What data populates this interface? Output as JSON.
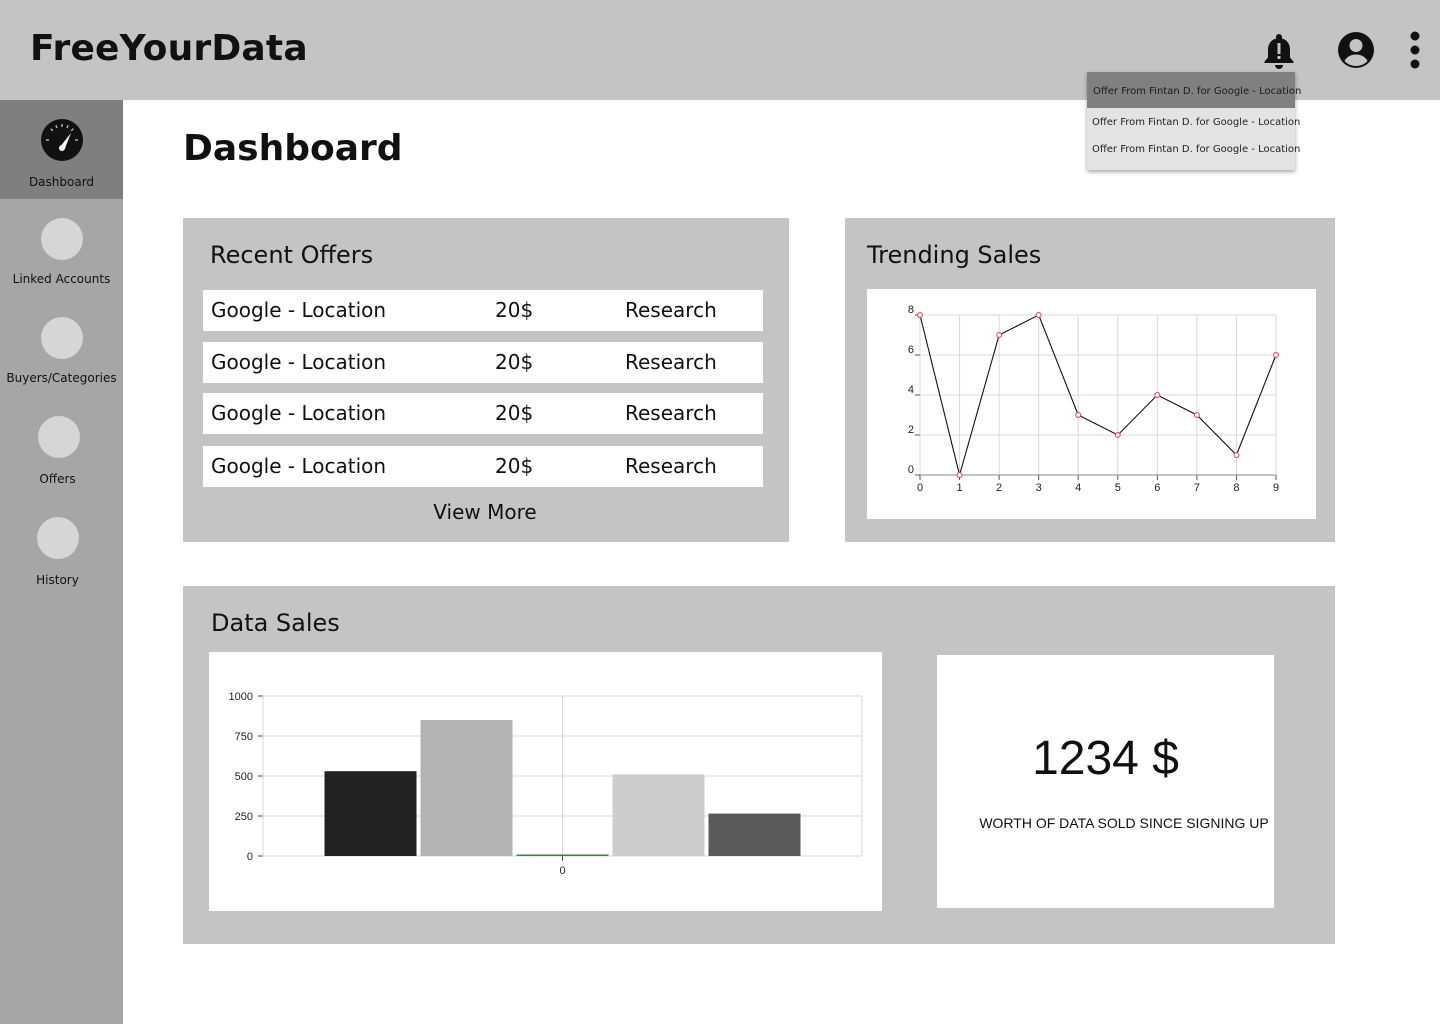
{
  "app": {
    "title": "FreeYourData"
  },
  "header": {
    "icons": [
      "bell-alert-icon",
      "account-circle-icon",
      "more-vertical-icon"
    ]
  },
  "notifications": [
    "Offer From Fintan D. for Google - Location",
    "Offer From Fintan D. for Google - Location",
    "Offer From Fintan D. for Google - Location"
  ],
  "sidebar": {
    "items": [
      {
        "label": "Dashboard",
        "icon": "speedometer-icon",
        "active": true
      },
      {
        "label": "Linked Accounts",
        "icon": "placeholder-circle-icon"
      },
      {
        "label": "Buyers/Categories",
        "icon": "placeholder-circle-icon"
      },
      {
        "label": "Offers",
        "icon": "placeholder-circle-icon"
      },
      {
        "label": "History",
        "icon": "placeholder-circle-icon"
      }
    ]
  },
  "page": {
    "title": "Dashboard"
  },
  "recent_offers": {
    "title": "Recent Offers",
    "rows": [
      {
        "source": "Google - Location",
        "price": "20$",
        "buyer": "Research"
      },
      {
        "source": "Google - Location",
        "price": "20$",
        "buyer": "Research"
      },
      {
        "source": "Google - Location",
        "price": "20$",
        "buyer": "Research"
      },
      {
        "source": "Google - Location",
        "price": "20$",
        "buyer": "Research"
      }
    ],
    "view_more": "View More"
  },
  "trending_sales": {
    "title": "Trending Sales"
  },
  "data_sales": {
    "title": "Data Sales",
    "total_amount": "1234 $",
    "total_caption": "WORTH OF DATA SOLD SINCE SIGNING UP"
  },
  "colors": {
    "header_bg": "#c4c4c4",
    "sidebar_bg": "#a6a6a6",
    "sidebar_active_bg": "#7f7f7f",
    "card_bg": "#c4c4c4",
    "line_marker": "#e8485a"
  },
  "chart_data": [
    {
      "type": "line",
      "title": "",
      "x": [
        0,
        1,
        2,
        3,
        4,
        5,
        6,
        7,
        8,
        9
      ],
      "series": [
        {
          "values": [
            8,
            0,
            7,
            8,
            3,
            2,
            4,
            3,
            1,
            6
          ]
        }
      ],
      "xlim": [
        0,
        9
      ],
      "ylim": [
        0,
        8
      ],
      "x_ticks": [
        0,
        1,
        2,
        3,
        4,
        5,
        6,
        7,
        8,
        9
      ],
      "y_ticks": [
        0,
        2,
        4,
        6,
        8
      ],
      "grid": true
    },
    {
      "type": "bar",
      "title": "",
      "categories": [
        "0"
      ],
      "series": [
        {
          "values": [
            530
          ],
          "color": "#222222"
        },
        {
          "values": [
            850
          ],
          "color": "#b3b3b3"
        },
        {
          "values": [
            8
          ],
          "color": "#2e8b3a"
        },
        {
          "values": [
            510
          ],
          "color": "#cccccc"
        },
        {
          "values": [
            265
          ],
          "color": "#5a5a5a"
        }
      ],
      "ylim": [
        0,
        1000
      ],
      "y_ticks": [
        0,
        250,
        500,
        750,
        1000
      ],
      "grid": true
    }
  ]
}
